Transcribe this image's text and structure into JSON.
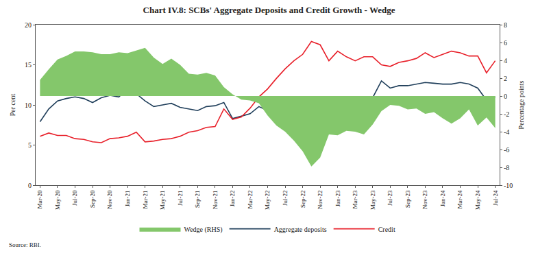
{
  "chart_data": {
    "type": "line",
    "title": "Chart IV.8: SCBs' Aggregate Deposits and Credit Growth - Wedge",
    "y_label": "Per cent",
    "y2_label": "Percentage points",
    "annotations": [
      "Source: RBI."
    ],
    "categories": [
      "Mar-20",
      null,
      "May-20",
      null,
      "Jul-20",
      null,
      "Sep-20",
      null,
      "Nov-20",
      null,
      "Jan-21",
      null,
      "Mar-21",
      null,
      "May-21",
      null,
      "Jul-21",
      null,
      "Sep-21",
      null,
      "Nov-21",
      null,
      "Jan-22",
      null,
      "Mar-22",
      null,
      "May-22",
      null,
      "Jul-22",
      null,
      "Sep-22",
      null,
      "Nov-22",
      null,
      "Jan-23",
      null,
      "Mar-23",
      null,
      "May-23",
      null,
      "Jul-23",
      null,
      "Sep-23",
      null,
      "Nov-23",
      null,
      "Jan-24",
      null,
      "Mar-24",
      null,
      "May-24",
      null,
      "Jul-24"
    ],
    "series": [
      {
        "name": "Wedge (RHS)",
        "type": "area",
        "axis": "y2",
        "color": "#84c76b",
        "values": [
          1.8,
          3.0,
          4.1,
          4.5,
          5.0,
          5.0,
          4.9,
          4.7,
          4.7,
          4.9,
          4.8,
          5.1,
          5.4,
          4.3,
          3.6,
          4.2,
          3.5,
          2.5,
          2.4,
          2.6,
          2.3,
          1.0,
          0.2,
          -0.4,
          -0.5,
          -0.8,
          -2.2,
          -3.3,
          -4.0,
          -5.0,
          -6.2,
          -7.9,
          -6.9,
          -4.3,
          -4.4,
          -3.9,
          -4.0,
          -4.3,
          -3.2,
          -1.7,
          -1.0,
          -1.1,
          -1.5,
          -1.4,
          -2.0,
          -1.8,
          -2.5,
          -3.1,
          -2.5,
          -1.5,
          -3.3,
          -2.4,
          -3.6
        ]
      },
      {
        "name": "Aggregate deposits",
        "type": "line",
        "color": "#1f3e5a",
        "values": [
          7.9,
          9.5,
          10.5,
          10.8,
          11.0,
          10.8,
          10.3,
          10.9,
          11.2,
          11.0,
          12.0,
          11.4,
          10.5,
          9.8,
          10.0,
          10.2,
          9.7,
          9.5,
          9.3,
          9.8,
          9.9,
          10.3,
          8.3,
          8.6,
          8.9,
          9.8,
          9.3,
          8.4,
          9.0,
          9.2,
          9.3,
          9.4,
          9.1,
          9.5,
          10.5,
          10.1,
          9.6,
          10.0,
          10.9,
          13.0,
          12.1,
          12.4,
          12.4,
          12.6,
          12.8,
          12.7,
          12.6,
          12.6,
          12.8,
          12.6,
          12.1,
          10.6,
          11.0
        ]
      },
      {
        "name": "Credit",
        "type": "line",
        "color": "#e8202a",
        "values": [
          6.1,
          6.5,
          6.2,
          6.2,
          5.8,
          5.7,
          5.4,
          5.3,
          5.8,
          5.9,
          6.1,
          6.6,
          5.4,
          5.5,
          5.7,
          5.8,
          6.1,
          6.6,
          6.8,
          7.2,
          7.3,
          9.5,
          8.2,
          8.5,
          9.6,
          11.0,
          12.0,
          13.3,
          14.5,
          15.5,
          16.3,
          17.9,
          17.5,
          15.5,
          16.7,
          16.0,
          15.5,
          16.0,
          16.0,
          15.0,
          14.8,
          15.3,
          15.5,
          15.8,
          16.5,
          15.9,
          16.3,
          16.7,
          16.5,
          16.1,
          16.1,
          14.0,
          15.5
        ]
      }
    ],
    "ylim": [
      0,
      20
    ],
    "yticks": [
      0,
      5,
      10,
      15,
      20
    ],
    "y2lim": [
      -10,
      8
    ],
    "y2ticks": [
      -10,
      -8,
      -6,
      -4,
      -2,
      0,
      2,
      4,
      6,
      8
    ],
    "grid": false,
    "legend": "bottom"
  }
}
